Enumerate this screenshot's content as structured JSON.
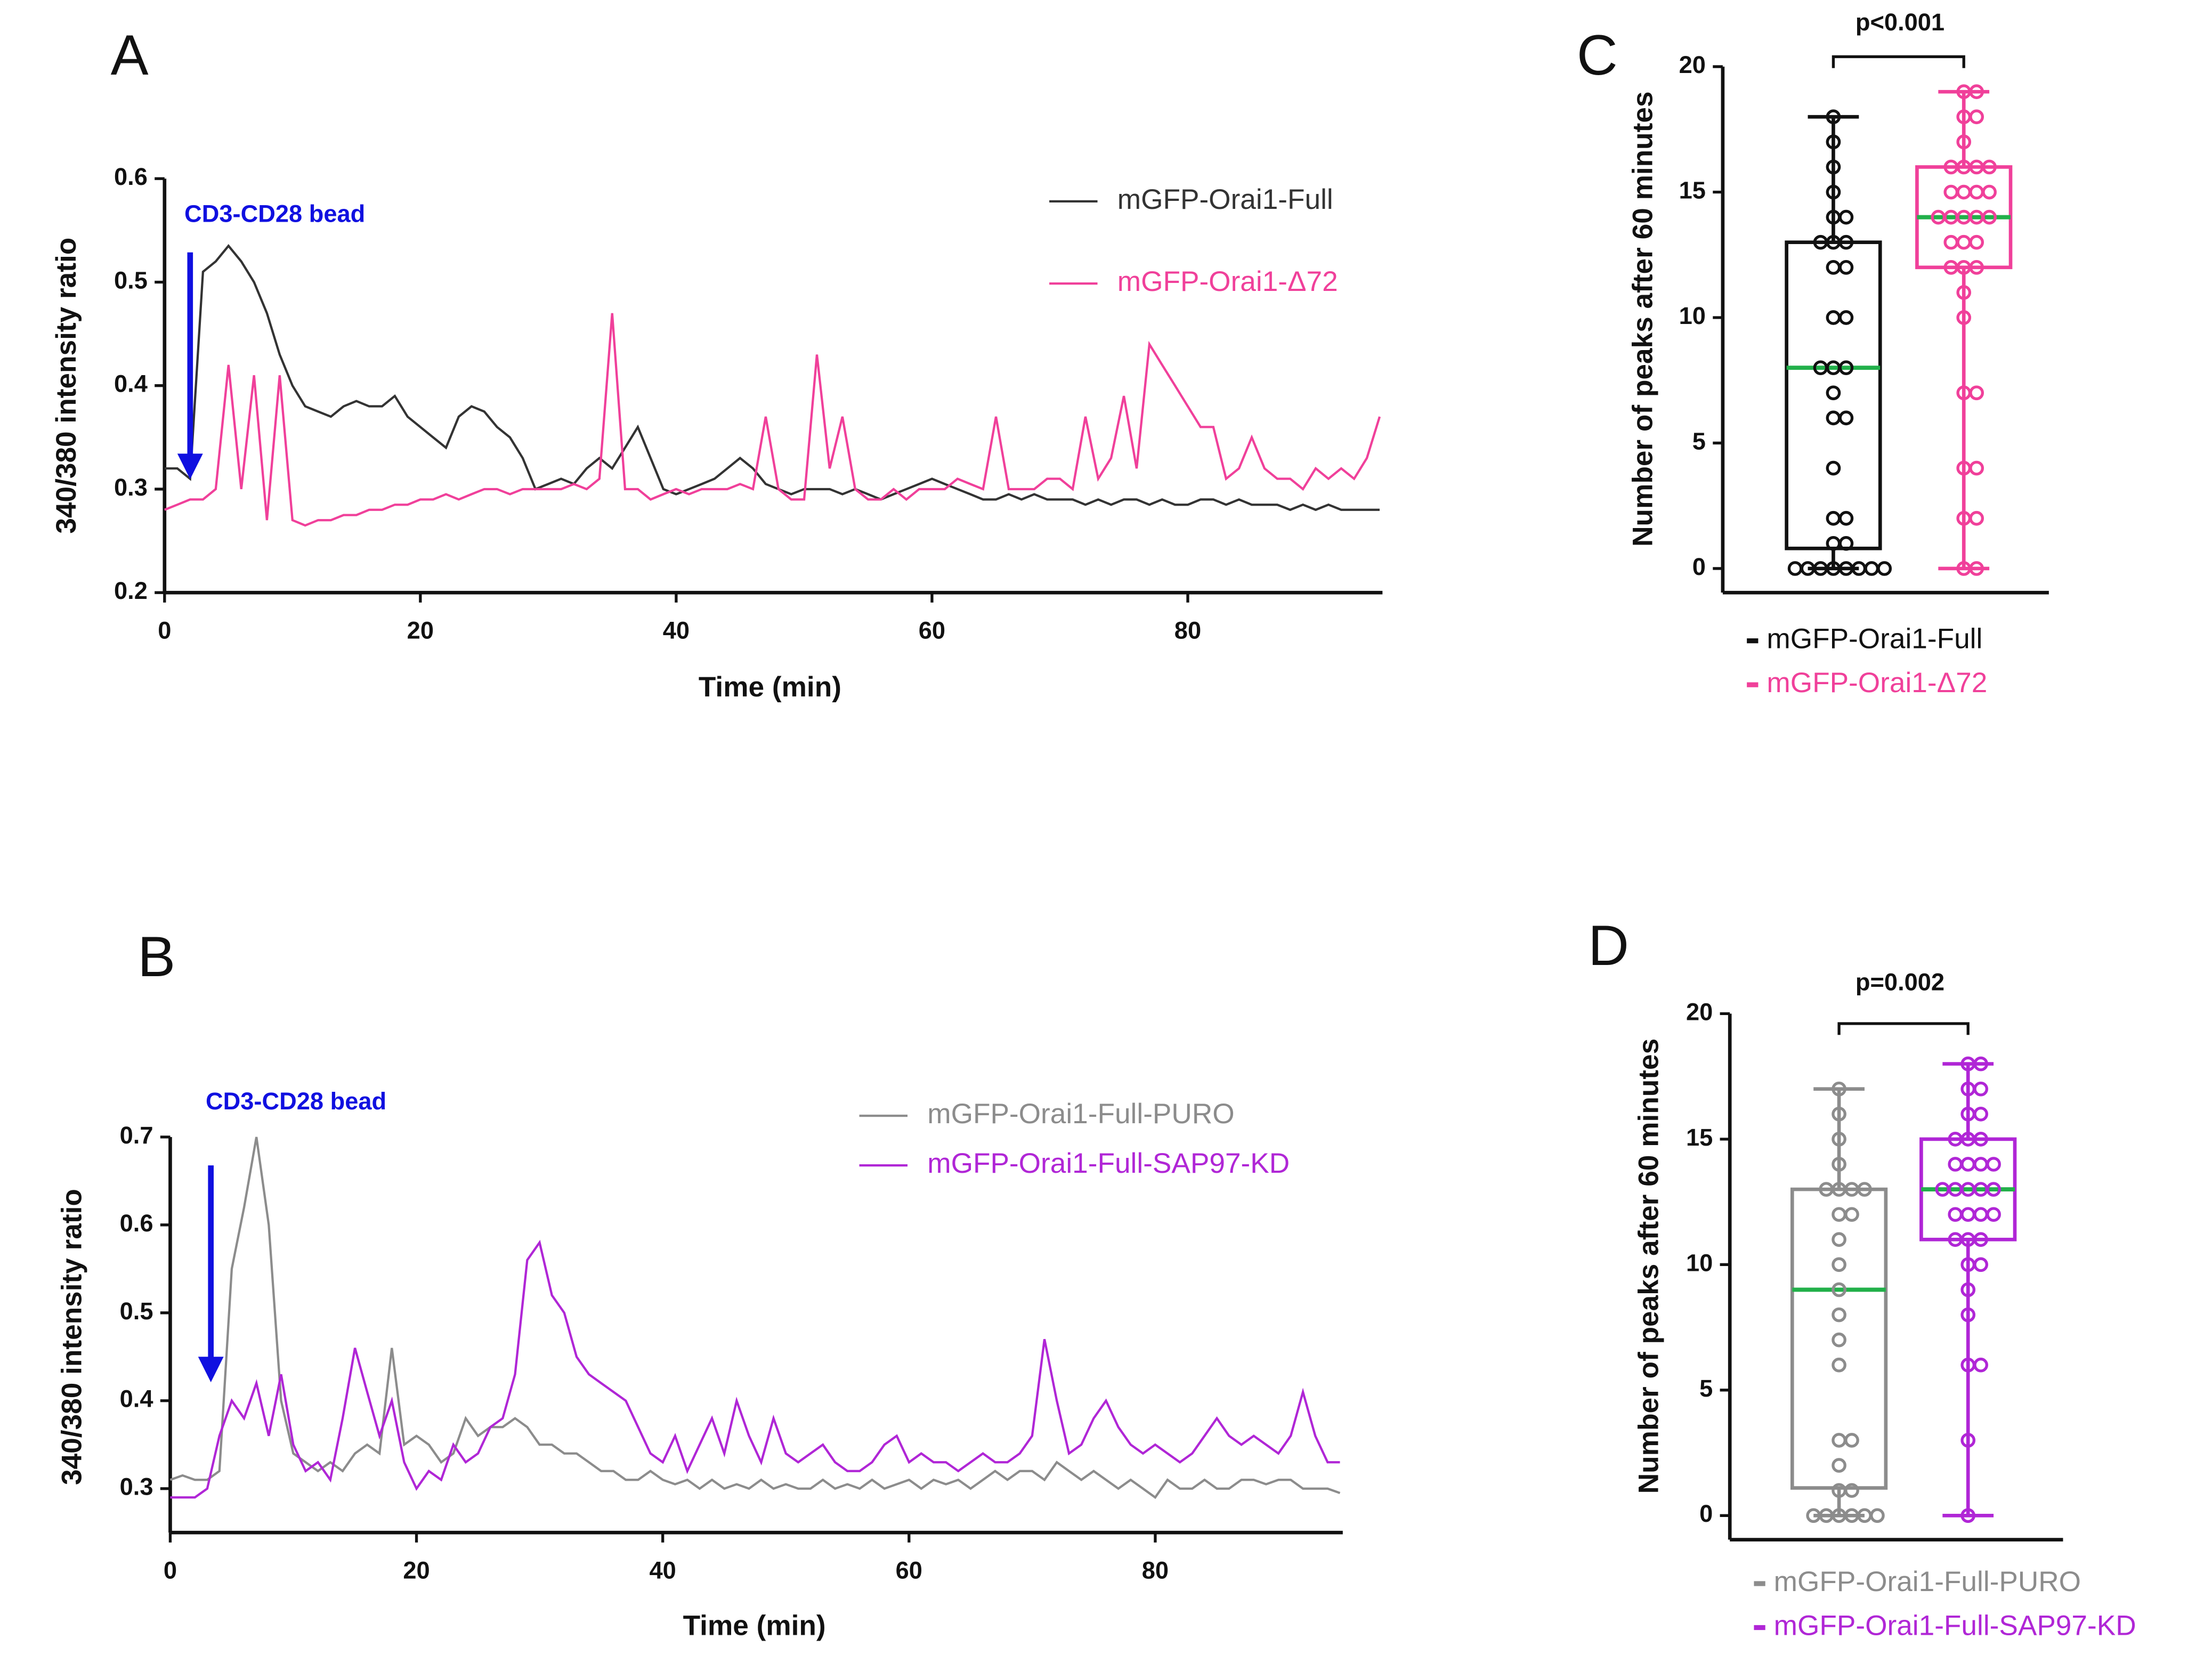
{
  "chart_data": [
    {
      "type": "line",
      "panel": "A",
      "annotation": "CD3-CD28 bead",
      "xlabel": "Time (min)",
      "ylabel": "340/380 intensity ratio",
      "xlim": [
        0,
        95
      ],
      "xticks": [
        0,
        20,
        40,
        60,
        80
      ],
      "ylim": [
        0.2,
        0.6
      ],
      "yticks": [
        0.2,
        0.3,
        0.4,
        0.5,
        0.6
      ],
      "x": [
        0,
        1,
        2,
        3,
        4,
        5,
        6,
        7,
        8,
        9,
        10,
        11,
        12,
        13,
        14,
        15,
        16,
        17,
        18,
        19,
        20,
        21,
        22,
        23,
        24,
        25,
        26,
        27,
        28,
        29,
        30,
        31,
        32,
        33,
        34,
        35,
        36,
        37,
        38,
        39,
        40,
        41,
        42,
        43,
        44,
        45,
        46,
        47,
        48,
        49,
        50,
        51,
        52,
        53,
        54,
        55,
        56,
        57,
        58,
        59,
        60,
        61,
        62,
        63,
        64,
        65,
        66,
        67,
        68,
        69,
        70,
        71,
        72,
        73,
        74,
        75,
        76,
        77,
        78,
        79,
        80,
        81,
        82,
        83,
        84,
        85,
        86,
        87,
        88,
        89,
        90,
        91,
        92,
        93,
        94,
        95
      ],
      "series": [
        {
          "name": "mGFP-Orai1-Full",
          "color": "#333333",
          "values": [
            0.32,
            0.32,
            0.31,
            0.51,
            0.52,
            0.535,
            0.52,
            0.5,
            0.47,
            0.43,
            0.4,
            0.38,
            0.375,
            0.37,
            0.38,
            0.385,
            0.38,
            0.38,
            0.39,
            0.37,
            0.36,
            0.35,
            0.34,
            0.37,
            0.38,
            0.375,
            0.36,
            0.35,
            0.33,
            0.3,
            0.305,
            0.31,
            0.305,
            0.32,
            0.33,
            0.32,
            0.34,
            0.36,
            0.33,
            0.3,
            0.295,
            0.3,
            0.305,
            0.31,
            0.32,
            0.33,
            0.32,
            0.305,
            0.3,
            0.295,
            0.3,
            0.3,
            0.3,
            0.295,
            0.3,
            0.295,
            0.29,
            0.295,
            0.3,
            0.305,
            0.31,
            0.305,
            0.3,
            0.295,
            0.29,
            0.29,
            0.295,
            0.29,
            0.295,
            0.29,
            0.29,
            0.29,
            0.285,
            0.29,
            0.285,
            0.29,
            0.29,
            0.285,
            0.29,
            0.285,
            0.285,
            0.29,
            0.29,
            0.285,
            0.29,
            0.285,
            0.285,
            0.285,
            0.28,
            0.285,
            0.28,
            0.285,
            0.28,
            0.28,
            0.28,
            0.28
          ]
        },
        {
          "name": "mGFP-Orai1-Δ72",
          "color": "#f0409a",
          "values": [
            0.28,
            0.285,
            0.29,
            0.29,
            0.3,
            0.42,
            0.3,
            0.41,
            0.27,
            0.41,
            0.27,
            0.265,
            0.27,
            0.27,
            0.275,
            0.275,
            0.28,
            0.28,
            0.285,
            0.285,
            0.29,
            0.29,
            0.295,
            0.29,
            0.295,
            0.3,
            0.3,
            0.295,
            0.3,
            0.3,
            0.3,
            0.3,
            0.305,
            0.3,
            0.31,
            0.47,
            0.3,
            0.3,
            0.29,
            0.295,
            0.3,
            0.295,
            0.3,
            0.3,
            0.3,
            0.305,
            0.3,
            0.37,
            0.3,
            0.29,
            0.29,
            0.43,
            0.32,
            0.37,
            0.3,
            0.29,
            0.29,
            0.3,
            0.29,
            0.3,
            0.3,
            0.3,
            0.31,
            0.305,
            0.3,
            0.37,
            0.3,
            0.3,
            0.3,
            0.31,
            0.31,
            0.3,
            0.37,
            0.31,
            0.33,
            0.39,
            0.32,
            0.44,
            0.42,
            0.4,
            0.38,
            0.36,
            0.36,
            0.31,
            0.32,
            0.35,
            0.32,
            0.31,
            0.31,
            0.3,
            0.32,
            0.31,
            0.32,
            0.31,
            0.33,
            0.37
          ]
        }
      ]
    },
    {
      "type": "box",
      "panel": "C",
      "annotation": "p<0.001",
      "ylabel": "Number of peaks after 60 minutes",
      "ylim": [
        0,
        20
      ],
      "yticks": [
        0,
        5,
        10,
        15,
        20
      ],
      "median_color": "#22b04a",
      "series": [
        {
          "name": "mGFP-Orai1-Full",
          "color": "#111111",
          "min": 0,
          "q1": 0.8,
          "median": 8,
          "q3": 13,
          "max": 18,
          "points": [
            0,
            0,
            0,
            0,
            0,
            0,
            0,
            0,
            1,
            1,
            2,
            2,
            4,
            6,
            6,
            7,
            8,
            8,
            8,
            10,
            10,
            12,
            12,
            13,
            13,
            13,
            14,
            14,
            15,
            16,
            17,
            18
          ]
        },
        {
          "name": "mGFP-Orai1-Δ72",
          "color": "#f0409a",
          "min": 0,
          "q1": 12,
          "median": 14,
          "q3": 16,
          "max": 19,
          "points": [
            0,
            0,
            2,
            2,
            4,
            4,
            7,
            7,
            10,
            11,
            12,
            12,
            12,
            13,
            13,
            13,
            14,
            14,
            14,
            14,
            14,
            15,
            15,
            15,
            15,
            16,
            16,
            16,
            16,
            17,
            18,
            18,
            19,
            19
          ]
        }
      ]
    },
    {
      "type": "line",
      "panel": "B",
      "annotation": "CD3-CD28 bead",
      "xlabel": "Time (min)",
      "ylabel": "340/380 intensity ratio",
      "xlim": [
        0,
        95
      ],
      "xticks": [
        0,
        20,
        40,
        60,
        80
      ],
      "ylim": [
        0.25,
        0.7
      ],
      "yticks": [
        0.3,
        0.4,
        0.5,
        0.6,
        0.7
      ],
      "x": [
        0,
        1,
        2,
        3,
        4,
        5,
        6,
        7,
        8,
        9,
        10,
        11,
        12,
        13,
        14,
        15,
        16,
        17,
        18,
        19,
        20,
        21,
        22,
        23,
        24,
        25,
        26,
        27,
        28,
        29,
        30,
        31,
        32,
        33,
        34,
        35,
        36,
        37,
        38,
        39,
        40,
        41,
        42,
        43,
        44,
        45,
        46,
        47,
        48,
        49,
        50,
        51,
        52,
        53,
        54,
        55,
        56,
        57,
        58,
        59,
        60,
        61,
        62,
        63,
        64,
        65,
        66,
        67,
        68,
        69,
        70,
        71,
        72,
        73,
        74,
        75,
        76,
        77,
        78,
        79,
        80,
        81,
        82,
        83,
        84,
        85,
        86,
        87,
        88,
        89,
        90,
        91,
        92,
        93,
        94,
        95
      ],
      "series": [
        {
          "name": "mGFP-Orai1-Full-PURO",
          "color": "#8c8c8c",
          "values": [
            0.31,
            0.315,
            0.31,
            0.31,
            0.32,
            0.55,
            0.62,
            0.7,
            0.6,
            0.4,
            0.34,
            0.33,
            0.32,
            0.33,
            0.32,
            0.34,
            0.35,
            0.34,
            0.46,
            0.35,
            0.36,
            0.35,
            0.33,
            0.34,
            0.38,
            0.36,
            0.37,
            0.37,
            0.38,
            0.37,
            0.35,
            0.35,
            0.34,
            0.34,
            0.33,
            0.32,
            0.32,
            0.31,
            0.31,
            0.32,
            0.31,
            0.305,
            0.31,
            0.3,
            0.31,
            0.3,
            0.305,
            0.3,
            0.31,
            0.3,
            0.305,
            0.3,
            0.3,
            0.31,
            0.3,
            0.305,
            0.3,
            0.31,
            0.3,
            0.305,
            0.31,
            0.3,
            0.31,
            0.305,
            0.31,
            0.3,
            0.31,
            0.32,
            0.31,
            0.32,
            0.32,
            0.31,
            0.33,
            0.32,
            0.31,
            0.32,
            0.31,
            0.3,
            0.31,
            0.3,
            0.29,
            0.31,
            0.3,
            0.3,
            0.31,
            0.3,
            0.3,
            0.31,
            0.31,
            0.305,
            0.31,
            0.31,
            0.3,
            0.3,
            0.3,
            0.295
          ]
        },
        {
          "name": "mGFP-Orai1-Full-SAP97-KD",
          "color": "#b026d6",
          "values": [
            0.29,
            0.29,
            0.29,
            0.3,
            0.36,
            0.4,
            0.38,
            0.42,
            0.36,
            0.43,
            0.35,
            0.32,
            0.33,
            0.31,
            0.38,
            0.46,
            0.41,
            0.36,
            0.4,
            0.33,
            0.3,
            0.32,
            0.31,
            0.35,
            0.33,
            0.34,
            0.37,
            0.38,
            0.43,
            0.56,
            0.58,
            0.52,
            0.5,
            0.45,
            0.43,
            0.42,
            0.41,
            0.4,
            0.37,
            0.34,
            0.33,
            0.36,
            0.32,
            0.35,
            0.38,
            0.34,
            0.4,
            0.36,
            0.33,
            0.38,
            0.34,
            0.33,
            0.34,
            0.35,
            0.33,
            0.32,
            0.32,
            0.33,
            0.35,
            0.36,
            0.33,
            0.34,
            0.33,
            0.33,
            0.32,
            0.33,
            0.34,
            0.33,
            0.33,
            0.34,
            0.36,
            0.47,
            0.4,
            0.34,
            0.35,
            0.38,
            0.4,
            0.37,
            0.35,
            0.34,
            0.35,
            0.34,
            0.33,
            0.34,
            0.36,
            0.38,
            0.36,
            0.35,
            0.36,
            0.35,
            0.34,
            0.36,
            0.41,
            0.36,
            0.33,
            0.33
          ]
        }
      ]
    },
    {
      "type": "box",
      "panel": "D",
      "annotation": "p=0.002",
      "ylabel": "Number of peaks after 60 minutes",
      "ylim": [
        0,
        20
      ],
      "yticks": [
        0,
        5,
        10,
        15,
        20
      ],
      "median_color": "#22b04a",
      "series": [
        {
          "name": "mGFP-Orai1-Full-PURO",
          "color": "#8c8c8c",
          "min": 0,
          "q1": 1.1,
          "median": 9,
          "q3": 13,
          "max": 17,
          "points": [
            0,
            0,
            0,
            0,
            0,
            0,
            1,
            1,
            2,
            3,
            3,
            6,
            7,
            8,
            9,
            10,
            11,
            12,
            12,
            13,
            13,
            13,
            13,
            14,
            15,
            16,
            17
          ]
        },
        {
          "name": "mGFP-Orai1-Full-SAP97-KD",
          "color": "#b026d6",
          "min": 0,
          "q1": 11,
          "median": 13,
          "q3": 15,
          "max": 18,
          "points": [
            0,
            3,
            6,
            6,
            8,
            9,
            10,
            10,
            11,
            11,
            11,
            12,
            12,
            12,
            12,
            13,
            13,
            13,
            13,
            13,
            14,
            14,
            14,
            14,
            15,
            15,
            15,
            16,
            16,
            17,
            17,
            18,
            18
          ]
        }
      ]
    }
  ]
}
